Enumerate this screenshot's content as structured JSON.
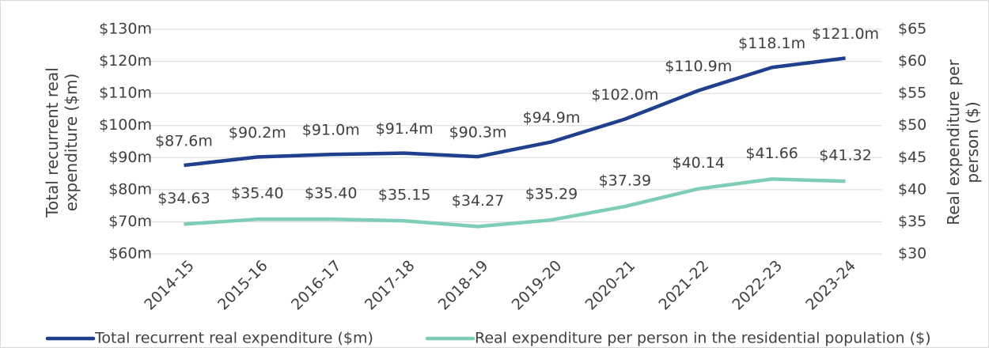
{
  "chart_data": {
    "type": "line",
    "y_label": "Total recurrent real expenditure ($m)",
    "y2_label": "Real expenditure per person ($)",
    "categories": [
      "2014-15",
      "2015-16",
      "2016-17",
      "2017-18",
      "2018-19",
      "2019-20",
      "2020-21",
      "2021-22",
      "2022-23",
      "2023-24"
    ],
    "series": [
      {
        "name": "Total recurrent real expenditure ($m)",
        "color": "#203f8c",
        "values": [
          87.6,
          90.2,
          91.0,
          91.4,
          90.3,
          94.9,
          102.0,
          110.9,
          118.1,
          121.0
        ],
        "value_labels": [
          "$87.6m",
          "$90.2m",
          "$91.0m",
          "$91.4m",
          "$90.3m",
          "$94.9m",
          "$102.0m",
          "$110.9m",
          "$118.1m",
          "$121.0m"
        ]
      },
      {
        "name": "Real expenditure per person in the residential population ($)",
        "color": "#7fcdb8",
        "axis": "y2",
        "values": [
          34.63,
          35.4,
          35.4,
          35.15,
          34.27,
          35.29,
          37.39,
          40.14,
          41.66,
          41.32
        ],
        "value_labels": [
          "$34.63",
          "$35.40",
          "$35.40",
          "$35.15",
          "$34.27",
          "$35.29",
          "$37.39",
          "$40.14",
          "$41.66",
          "$41.32"
        ]
      }
    ],
    "ylim": [
      60,
      130
    ],
    "yticks": [
      {
        "value": 60,
        "label": "$60m"
      },
      {
        "value": 70,
        "label": "$70m"
      },
      {
        "value": 80,
        "label": "$80m"
      },
      {
        "value": 90,
        "label": "$90m"
      },
      {
        "value": 100,
        "label": "$100m"
      },
      {
        "value": 110,
        "label": "$110m"
      },
      {
        "value": 120,
        "label": "$120m"
      },
      {
        "value": 130,
        "label": "$130m"
      }
    ],
    "y2lim": [
      30,
      65
    ],
    "y2ticks": [
      {
        "value": 30,
        "label": "$30"
      },
      {
        "value": 35,
        "label": "$35"
      },
      {
        "value": 40,
        "label": "$40"
      },
      {
        "value": 45,
        "label": "$45"
      },
      {
        "value": 50,
        "label": "$50"
      },
      {
        "value": 55,
        "label": "$55"
      },
      {
        "value": 60,
        "label": "$60"
      },
      {
        "value": 65,
        "label": "$65"
      }
    ],
    "grid": true,
    "legend": "bottom"
  }
}
